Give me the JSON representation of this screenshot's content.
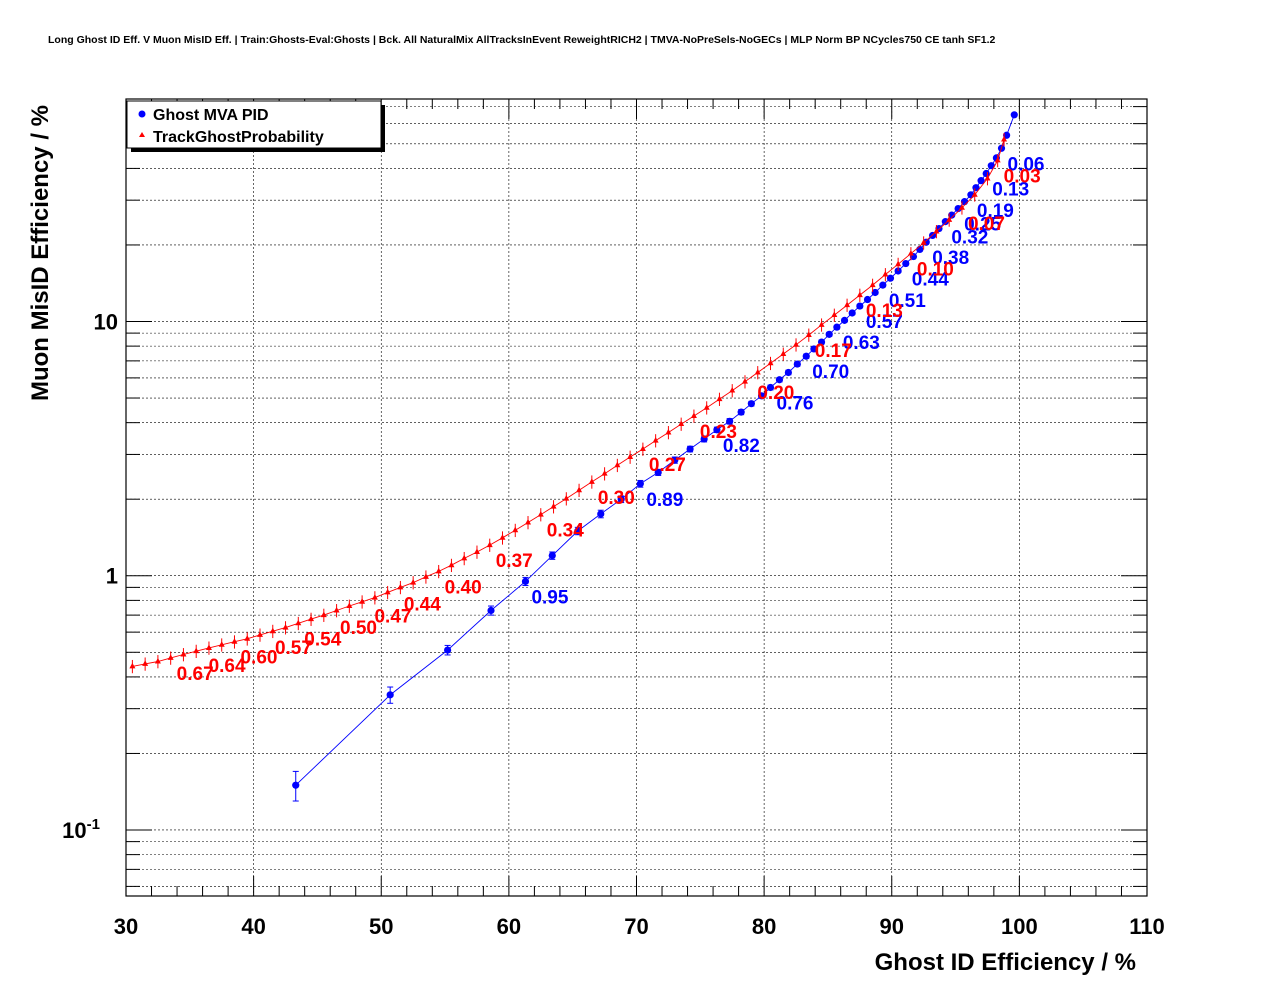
{
  "chart_data": {
    "type": "scatter",
    "title": "Long Ghost ID Eff. V Muon MisID Eff. | Train:Ghosts-Eval:Ghosts | Bck. All NaturalMix AllTracksInEvent ReweightRICH2 | TMVA-NoPreSels-NoGECs | MLP Norm BP NCycles750 CE tanh SF1.2",
    "xlabel": "Ghost ID Efficiency / %",
    "ylabel": "Muon MisID Efficiency / %",
    "xlim": [
      30,
      110
    ],
    "ylim": [
      0.055,
      75
    ],
    "y_scale": "log",
    "grid": true,
    "legend_position": "top-left",
    "x_ticks": [
      {
        "value": 30,
        "label": "30"
      },
      {
        "value": 40,
        "label": "40"
      },
      {
        "value": 50,
        "label": "50"
      },
      {
        "value": 60,
        "label": "60"
      },
      {
        "value": 70,
        "label": "70"
      },
      {
        "value": 80,
        "label": "80"
      },
      {
        "value": 90,
        "label": "90"
      },
      {
        "value": 100,
        "label": "100"
      },
      {
        "value": 110,
        "label": "110"
      }
    ],
    "y_ticks": [
      {
        "value": 0.1,
        "base": "10",
        "exp": "-1"
      },
      {
        "value": 1,
        "base": "1",
        "exp": ""
      },
      {
        "value": 10,
        "base": "10",
        "exp": ""
      }
    ],
    "series": [
      {
        "name": "Ghost MVA PID",
        "color": "#0000ff",
        "marker": "circle",
        "x": [
          43.3,
          50.7,
          55.2,
          58.6,
          61.3,
          63.4,
          65.4,
          67.2,
          68.8,
          70.3,
          71.7,
          73.0,
          74.2,
          75.3,
          76.3,
          77.3,
          78.2,
          79.0,
          79.8,
          80.5,
          81.2,
          81.9,
          82.6,
          83.3,
          83.9,
          84.5,
          85.1,
          85.7,
          86.3,
          86.9,
          87.5,
          88.1,
          88.7,
          89.3,
          89.9,
          90.5,
          91.1,
          91.7,
          92.2,
          92.7,
          93.2,
          93.7,
          94.2,
          94.7,
          95.2,
          95.7,
          96.2,
          96.6,
          97.0,
          97.4,
          97.8,
          98.2,
          98.6,
          99.0,
          99.6
        ],
        "y": [
          0.15,
          0.34,
          0.51,
          0.73,
          0.95,
          1.2,
          1.5,
          1.75,
          2.0,
          2.3,
          2.55,
          2.85,
          3.15,
          3.45,
          3.75,
          4.05,
          4.4,
          4.75,
          5.1,
          5.5,
          5.9,
          6.3,
          6.8,
          7.3,
          7.8,
          8.3,
          8.9,
          9.5,
          10.1,
          10.8,
          11.5,
          12.2,
          13.0,
          13.9,
          14.8,
          15.8,
          16.9,
          18.0,
          19.2,
          20.5,
          21.8,
          23.2,
          24.7,
          26.2,
          27.8,
          29.6,
          31.5,
          33.6,
          35.8,
          38.2,
          41.0,
          44.0,
          48.0,
          54.0,
          65.0
        ],
        "yerr": [
          0.02,
          0.025,
          0.022,
          0.03,
          0.035,
          0.04,
          0.05,
          0.06,
          0.06,
          0.07,
          0.07,
          0.08,
          0.08,
          0.09,
          0.09,
          0.1,
          0.1,
          0.1,
          0.11,
          0.12,
          0.12,
          0.13,
          0.13,
          0.14,
          0.14,
          0.15,
          0.15,
          0.16,
          0.16,
          0.17,
          0.18,
          0.18,
          0.19,
          0.2,
          0.2,
          0.21,
          0.22,
          0.23,
          0.24,
          0.25,
          0.26,
          0.27,
          0.28,
          0.29,
          0.3,
          0.31,
          0.32,
          0.33,
          0.34,
          0.35,
          0.37,
          0.39,
          0.41,
          0.44,
          0.5
        ],
        "cut_labels": [
          {
            "text": "0.95",
            "x": 61.3,
            "y": 0.95
          },
          {
            "text": "0.89",
            "x": 70.3,
            "y": 2.3
          },
          {
            "text": "0.82",
            "x": 76.3,
            "y": 3.75
          },
          {
            "text": "0.76",
            "x": 80.5,
            "y": 5.5
          },
          {
            "text": "0.70",
            "x": 83.3,
            "y": 7.3
          },
          {
            "text": "0.63",
            "x": 85.7,
            "y": 9.5
          },
          {
            "text": "0.57",
            "x": 87.5,
            "y": 11.5
          },
          {
            "text": "0.51",
            "x": 89.3,
            "y": 13.9
          },
          {
            "text": "0.44",
            "x": 91.1,
            "y": 16.9
          },
          {
            "text": "0.38",
            "x": 92.7,
            "y": 20.5
          },
          {
            "text": "0.32",
            "x": 94.2,
            "y": 24.7
          },
          {
            "text": "0.25",
            "x": 95.2,
            "y": 27.8
          },
          {
            "text": "0.19",
            "x": 96.2,
            "y": 31.5
          },
          {
            "text": "0.13",
            "x": 97.4,
            "y": 38.2
          },
          {
            "text": "0.06",
            "x": 98.6,
            "y": 48.0
          }
        ]
      },
      {
        "name": "TrackGhostProbability",
        "color": "#ff0000",
        "marker": "triangle",
        "x": [
          30.5,
          31.5,
          32.5,
          33.5,
          34.5,
          35.5,
          36.5,
          37.5,
          38.5,
          39.5,
          40.5,
          41.5,
          42.5,
          43.5,
          44.5,
          45.5,
          46.5,
          47.5,
          48.5,
          49.5,
          50.5,
          51.5,
          52.5,
          53.5,
          54.5,
          55.5,
          56.5,
          57.5,
          58.5,
          59.5,
          60.5,
          61.5,
          62.5,
          63.5,
          64.5,
          65.5,
          66.5,
          67.5,
          68.5,
          69.5,
          70.5,
          71.5,
          72.5,
          73.5,
          74.5,
          75.5,
          76.5,
          77.5,
          78.5,
          79.5,
          80.5,
          81.5,
          82.5,
          83.5,
          84.5,
          85.5,
          86.5,
          87.5,
          88.5,
          89.5,
          90.5,
          91.5,
          92.5,
          93.5,
          94.5,
          95.5,
          96.5,
          97.5,
          98.3,
          98.8
        ],
        "y": [
          0.44,
          0.45,
          0.46,
          0.475,
          0.49,
          0.505,
          0.52,
          0.535,
          0.55,
          0.565,
          0.585,
          0.605,
          0.625,
          0.65,
          0.675,
          0.7,
          0.73,
          0.76,
          0.79,
          0.82,
          0.86,
          0.9,
          0.94,
          0.99,
          1.04,
          1.1,
          1.17,
          1.24,
          1.32,
          1.41,
          1.51,
          1.62,
          1.74,
          1.87,
          2.01,
          2.17,
          2.34,
          2.52,
          2.72,
          2.93,
          3.15,
          3.4,
          3.66,
          3.95,
          4.25,
          4.58,
          4.95,
          5.35,
          5.8,
          6.3,
          6.85,
          7.45,
          8.1,
          8.85,
          9.7,
          10.6,
          11.6,
          12.7,
          13.9,
          15.3,
          16.8,
          18.5,
          20.4,
          22.6,
          25.1,
          28.0,
          31.5,
          36.5,
          43.0,
          52.0
        ],
        "cut_labels": [
          {
            "text": "0.67",
            "x": 33.5,
            "y": 0.475
          },
          {
            "text": "0.64",
            "x": 36.0,
            "y": 0.51
          },
          {
            "text": "0.60",
            "x": 38.5,
            "y": 0.55
          },
          {
            "text": "0.57",
            "x": 41.2,
            "y": 0.6
          },
          {
            "text": "0.54",
            "x": 43.5,
            "y": 0.65
          },
          {
            "text": "0.50",
            "x": 46.3,
            "y": 0.72
          },
          {
            "text": "0.47",
            "x": 49.0,
            "y": 0.8
          },
          {
            "text": "0.44",
            "x": 51.3,
            "y": 0.89
          },
          {
            "text": "0.40",
            "x": 54.5,
            "y": 1.04
          },
          {
            "text": "0.37",
            "x": 58.5,
            "y": 1.32
          },
          {
            "text": "0.34",
            "x": 62.5,
            "y": 1.74
          },
          {
            "text": "0.30",
            "x": 66.5,
            "y": 2.34
          },
          {
            "text": "0.27",
            "x": 70.5,
            "y": 3.15
          },
          {
            "text": "0.23",
            "x": 74.5,
            "y": 4.25
          },
          {
            "text": "0.20",
            "x": 79.0,
            "y": 6.05
          },
          {
            "text": "0.17",
            "x": 83.5,
            "y": 8.85
          },
          {
            "text": "0.13",
            "x": 87.5,
            "y": 12.7
          },
          {
            "text": "0.10",
            "x": 91.5,
            "y": 18.5
          },
          {
            "text": "0.07",
            "x": 95.5,
            "y": 28.0
          },
          {
            "text": "0.03",
            "x": 98.3,
            "y": 43.0
          }
        ]
      }
    ]
  }
}
